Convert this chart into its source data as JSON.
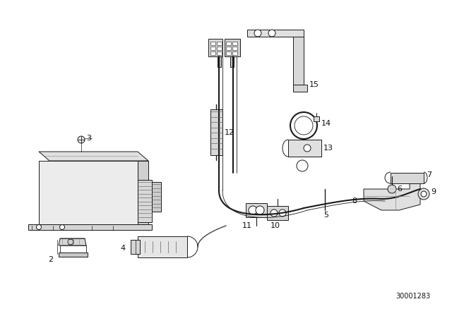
{
  "background_color": "#ffffff",
  "diagram_code": "30001283",
  "line_color": "#1a1a1a",
  "text_color": "#111111",
  "font_size_labels": 8,
  "font_size_code": 7,
  "figsize": [
    6.4,
    4.48
  ],
  "dpi": 100
}
